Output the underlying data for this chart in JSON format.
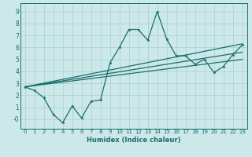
{
  "title": "",
  "xlabel": "Humidex (Indice chaleur)",
  "bg_color": "#cce8e8",
  "grid_color": "#aed4d4",
  "line_color": "#1a6e6e",
  "xlim": [
    -0.5,
    23.5
  ],
  "ylim": [
    -0.8,
    9.7
  ],
  "xticks": [
    0,
    1,
    2,
    3,
    4,
    5,
    6,
    7,
    8,
    9,
    10,
    11,
    12,
    13,
    14,
    15,
    16,
    17,
    18,
    19,
    20,
    21,
    22,
    23
  ],
  "yticks": [
    0,
    1,
    2,
    3,
    4,
    5,
    6,
    7,
    8,
    9
  ],
  "ytick_labels": [
    "-0",
    "1",
    "2",
    "3",
    "4",
    "5",
    "6",
    "7",
    "8",
    "9"
  ],
  "line1_x": [
    0,
    1,
    2,
    3,
    4,
    5,
    6,
    7,
    8,
    9,
    10,
    11,
    12,
    13,
    14,
    15,
    16,
    17,
    18,
    19,
    20,
    21,
    22,
    23
  ],
  "line1_y": [
    2.7,
    2.4,
    1.8,
    0.4,
    -0.3,
    1.1,
    0.1,
    1.5,
    1.6,
    4.7,
    6.0,
    7.5,
    7.5,
    6.6,
    9.0,
    6.7,
    5.3,
    5.3,
    4.6,
    5.0,
    3.9,
    4.4,
    5.4,
    6.2
  ],
  "line2_x": [
    0,
    23
  ],
  "line2_y": [
    2.7,
    6.3
  ],
  "line3_x": [
    0,
    23
  ],
  "line3_y": [
    2.7,
    5.6
  ],
  "line4_x": [
    0,
    23
  ],
  "line4_y": [
    2.7,
    5.0
  ],
  "marker_size": 2.5,
  "linewidth": 0.9,
  "xlabel_fontsize": 6.0,
  "tick_fontsize": 5.0
}
